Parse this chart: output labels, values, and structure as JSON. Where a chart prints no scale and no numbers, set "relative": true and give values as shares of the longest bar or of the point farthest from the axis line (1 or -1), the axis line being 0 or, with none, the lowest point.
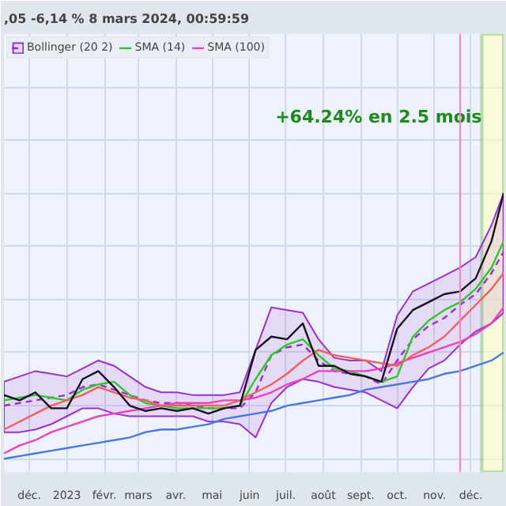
{
  "chart_data": {
    "type": "line",
    "relative": true,
    "title": ",05 -6,14 % 8 mars 2024, 00:59:59",
    "x": [
      "2022-11-10",
      "2022-11-23",
      "2022-12-06",
      "2022-12-19",
      "2023-01-01",
      "2023-01-14",
      "2023-01-27",
      "2023-02-09",
      "2023-02-22",
      "2023-03-07",
      "2023-03-20",
      "2023-04-02",
      "2023-04-15",
      "2023-04-28",
      "2023-05-11",
      "2023-05-24",
      "2023-06-06",
      "2023-06-19",
      "2023-07-02",
      "2023-07-15",
      "2023-07-28",
      "2023-08-10",
      "2023-08-23",
      "2023-09-05",
      "2023-09-18",
      "2023-10-01",
      "2023-10-14",
      "2023-10-27",
      "2023-11-09",
      "2023-11-22",
      "2023-12-05",
      "2023-12-18",
      "2023-12-28"
    ],
    "series": [
      {
        "name": "Bollinger (20 2)",
        "color": "#9b30d0",
        "line_style": "dashed",
        "values": [
          0.2,
          0.21,
          0.22,
          0.23,
          0.24,
          0.27,
          0.28,
          0.26,
          0.24,
          0.22,
          0.21,
          0.21,
          0.2,
          0.19,
          0.19,
          0.19,
          0.25,
          0.39,
          0.42,
          0.43,
          0.37,
          0.33,
          0.32,
          0.31,
          0.28,
          0.37,
          0.45,
          0.5,
          0.53,
          0.58,
          0.62,
          0.7,
          0.78
        ],
        "upper": [
          0.29,
          0.31,
          0.33,
          0.32,
          0.31,
          0.34,
          0.37,
          0.35,
          0.31,
          0.27,
          0.25,
          0.25,
          0.24,
          0.24,
          0.24,
          0.25,
          0.41,
          0.57,
          0.56,
          0.55,
          0.45,
          0.38,
          0.37,
          0.37,
          0.33,
          0.54,
          0.63,
          0.66,
          0.69,
          0.72,
          0.76,
          0.88,
          1.0
        ],
        "lower": [
          0.1,
          0.1,
          0.11,
          0.13,
          0.16,
          0.19,
          0.19,
          0.17,
          0.16,
          0.16,
          0.16,
          0.16,
          0.16,
          0.14,
          0.14,
          0.13,
          0.08,
          0.21,
          0.27,
          0.3,
          0.29,
          0.27,
          0.26,
          0.25,
          0.22,
          0.19,
          0.27,
          0.34,
          0.37,
          0.43,
          0.48,
          0.51,
          0.55
        ]
      },
      {
        "name": "SMA (14)",
        "color": "#2ec82e",
        "values": [
          0.22,
          0.23,
          0.24,
          0.23,
          0.22,
          0.26,
          0.28,
          0.29,
          0.24,
          0.21,
          0.2,
          0.19,
          0.19,
          0.19,
          0.19,
          0.2,
          0.3,
          0.39,
          0.43,
          0.45,
          0.39,
          0.34,
          0.33,
          0.31,
          0.29,
          0.31,
          0.46,
          0.52,
          0.56,
          0.59,
          0.64,
          0.72,
          0.82
        ]
      },
      {
        "name": "SMA (100)",
        "color": "#f040c0",
        "values": [
          0.02,
          0.05,
          0.07,
          0.1,
          0.12,
          0.14,
          0.16,
          0.17,
          0.18,
          0.19,
          0.2,
          0.21,
          0.21,
          0.21,
          0.22,
          0.22,
          0.23,
          0.25,
          0.28,
          0.3,
          0.33,
          0.33,
          0.33,
          0.33,
          0.34,
          0.36,
          0.38,
          0.4,
          0.42,
          0.44,
          0.47,
          0.51,
          0.57
        ]
      },
      {
        "color": "#f06060",
        "values": [
          0.11,
          0.14,
          0.17,
          0.2,
          0.22,
          0.24,
          0.27,
          0.25,
          0.23,
          0.22,
          0.2,
          0.2,
          0.2,
          0.2,
          0.2,
          0.22,
          0.25,
          0.28,
          0.32,
          0.37,
          0.41,
          0.39,
          0.38,
          0.37,
          0.36,
          0.35,
          0.39,
          0.42,
          0.46,
          0.52,
          0.58,
          0.64,
          0.7
        ]
      },
      {
        "color": "#4a78e0",
        "values": [
          0.0,
          0.01,
          0.02,
          0.03,
          0.04,
          0.05,
          0.06,
          0.07,
          0.08,
          0.1,
          0.11,
          0.11,
          0.12,
          0.13,
          0.15,
          0.16,
          0.17,
          0.18,
          0.2,
          0.21,
          0.22,
          0.23,
          0.24,
          0.26,
          0.27,
          0.28,
          0.29,
          0.3,
          0.32,
          0.33,
          0.35,
          0.37,
          0.4
        ]
      },
      {
        "color": "#1a1020",
        "values": [
          0.24,
          0.22,
          0.25,
          0.19,
          0.19,
          0.3,
          0.33,
          0.27,
          0.2,
          0.18,
          0.19,
          0.18,
          0.19,
          0.17,
          0.19,
          0.2,
          0.41,
          0.46,
          0.45,
          0.51,
          0.35,
          0.35,
          0.32,
          0.31,
          0.29,
          0.49,
          0.56,
          0.59,
          0.62,
          0.63,
          0.68,
          0.82,
          1.0
        ]
      }
    ],
    "xlim": [
      "2022-11-10",
      "2023-12-28"
    ],
    "xticks": [
      {
        "value": "2022-12-01",
        "label": "déc."
      },
      {
        "value": "2023-01-01",
        "label": "2023"
      },
      {
        "value": "2023-02-01",
        "label": "févr."
      },
      {
        "value": "2023-03-01",
        "label": "mars"
      },
      {
        "value": "2023-04-01",
        "label": "avr."
      },
      {
        "value": "2023-05-01",
        "label": "mai"
      },
      {
        "value": "2023-06-01",
        "label": "juin"
      },
      {
        "value": "2023-07-01",
        "label": "juil."
      },
      {
        "value": "2023-08-01",
        "label": "août"
      },
      {
        "value": "2023-09-01",
        "label": "sept."
      },
      {
        "value": "2023-10-01",
        "label": "oct."
      },
      {
        "value": "2023-11-01",
        "label": "nov."
      },
      {
        "value": "2023-12-01",
        "label": "déc."
      }
    ],
    "ref_lines": [
      {
        "axis": "x",
        "value": "2023-11-22",
        "color": "#ff80c0"
      }
    ],
    "bands": [
      {
        "axis": "x",
        "from": "2023-12-10",
        "to": "2023-12-28",
        "label": "+64.24% en 2.5 mois",
        "color": "#ffffc0"
      }
    ],
    "grid": true,
    "legend": "top left"
  }
}
